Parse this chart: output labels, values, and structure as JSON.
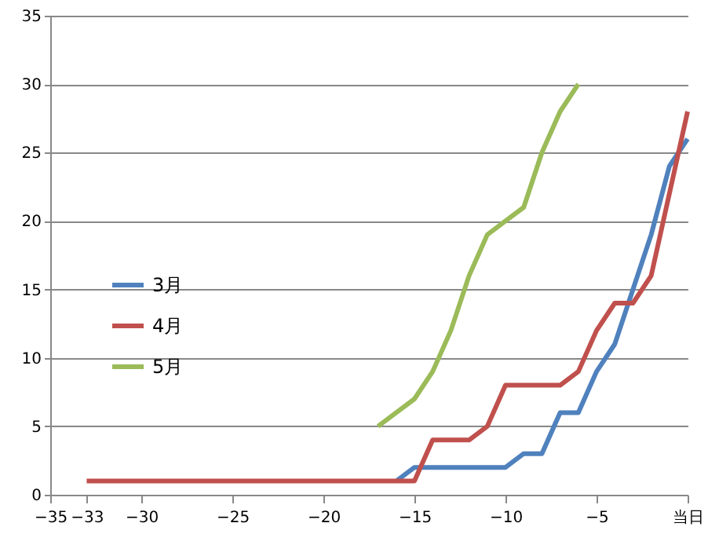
{
  "chart_data": {
    "type": "line",
    "x": [
      -33,
      -32,
      -31,
      -30,
      -29,
      -28,
      -27,
      -26,
      -25,
      -24,
      -23,
      -22,
      -21,
      -20,
      -19,
      -18,
      -17,
      -16,
      -15,
      -14,
      -13,
      -12,
      -11,
      -10,
      -9,
      -8,
      -7,
      -6,
      -5,
      -4,
      -3,
      -2,
      -1,
      0
    ],
    "series": [
      {
        "name": "3月",
        "color": "#4f81bd",
        "values": [
          null,
          null,
          null,
          null,
          null,
          null,
          null,
          null,
          null,
          null,
          null,
          null,
          null,
          null,
          null,
          null,
          null,
          1,
          2,
          2,
          2,
          2,
          2,
          2,
          3,
          3,
          6,
          6,
          9,
          11,
          15,
          19,
          24,
          26
        ]
      },
      {
        "name": "4月",
        "color": "#c0504d",
        "values": [
          1,
          1,
          1,
          1,
          1,
          1,
          1,
          1,
          1,
          1,
          1,
          1,
          1,
          1,
          1,
          1,
          1,
          1,
          1,
          4,
          4,
          4,
          5,
          8,
          8,
          8,
          8,
          9,
          12,
          14,
          14,
          16,
          22,
          28
        ]
      },
      {
        "name": "5月",
        "color": "#9bbb59",
        "x": [
          -17,
          -16,
          -15,
          -14,
          -13,
          -12,
          -11,
          -10,
          -9,
          -8,
          -7,
          -6
        ],
        "values": [
          5,
          6,
          7,
          9,
          12,
          16,
          19,
          20,
          21,
          25,
          28,
          30
        ]
      }
    ],
    "xlim": [
      -35,
      0
    ],
    "xticks": [
      -35,
      -33,
      -30,
      -25,
      -20,
      -15,
      -10,
      -5,
      {
        "value": 0,
        "label": "当日"
      }
    ],
    "ylim": [
      0,
      35
    ],
    "yticks": [
      0,
      5,
      10,
      15,
      20,
      25,
      30,
      35
    ],
    "grid": "y",
    "legend": "left",
    "marker": "none",
    "line_style": "solid"
  }
}
